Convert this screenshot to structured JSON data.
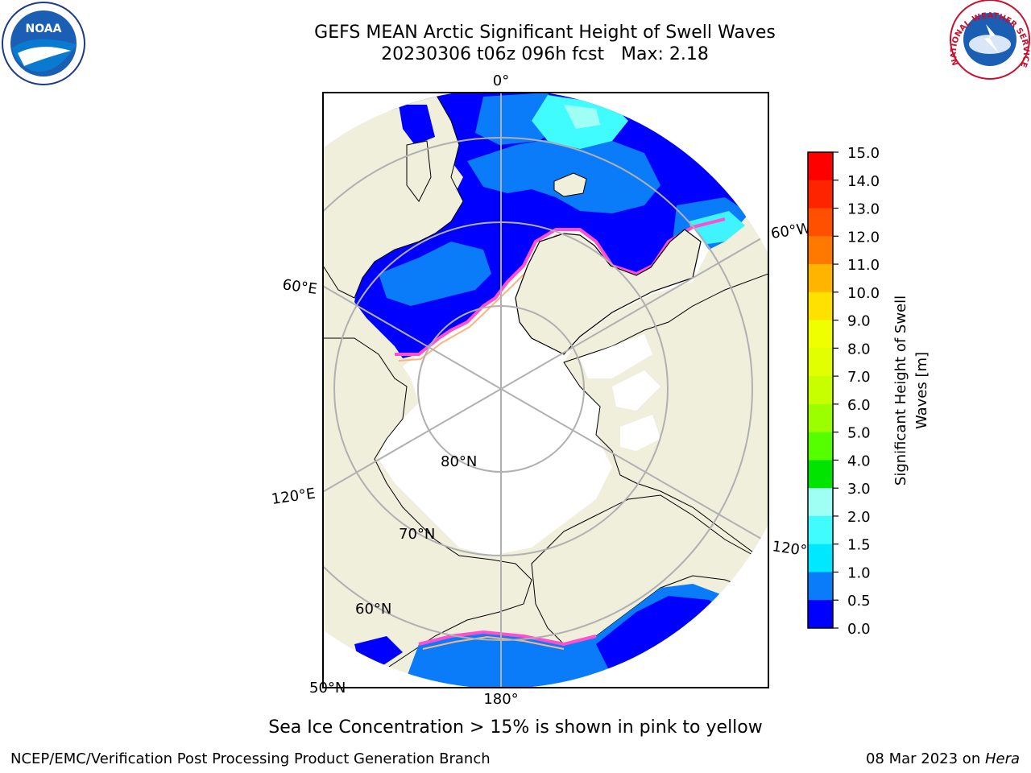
{
  "title": {
    "line1": "GEFS MEAN Arctic Significant Height of Swell Waves",
    "line2": "20230306 t06z 096h fcst   Max: 2.18"
  },
  "logos": {
    "left": "NOAA",
    "right": "NATIONAL WEATHER SERVICE"
  },
  "map": {
    "projection": "north-polar-stereographic",
    "longitude_labels": [
      "0°",
      "60°E",
      "60°W",
      "120°E",
      "120°W",
      "180°"
    ],
    "latitude_labels": [
      "80°N",
      "70°N",
      "60°N",
      "50°N"
    ],
    "colors": {
      "land": "#efefdc",
      "ocean_open": "#0000ff",
      "ocean_mid": "#0a7cfa",
      "ocean_high": "#3ff3ff",
      "ice": "#ffffff",
      "ice_edge": "#ff4fcf",
      "grid": "#b0b0b0"
    }
  },
  "colorbar": {
    "label": "Significant Height of Swell Waves [m]",
    "label_line1": "Significant Height of Swell",
    "label_line2": "Waves [m]",
    "ticks": [
      "15.0",
      "14.0",
      "13.0",
      "12.0",
      "11.0",
      "10.0",
      "9.0",
      "8.0",
      "7.0",
      "6.0",
      "5.0",
      "4.0",
      "3.0",
      "2.0",
      "1.5",
      "1.0",
      "0.5",
      "0.0"
    ],
    "colors_top_to_bottom": [
      "#ff0000",
      "#ff2400",
      "#ff5000",
      "#ff7800",
      "#ff9000",
      "#ffb400",
      "#ffe100",
      "#f0ff00",
      "#e1ff00",
      "#c8ff00",
      "#9bff00",
      "#55ff00",
      "#00e400",
      "#55f383",
      "#9ffff4",
      "#40fcff",
      "#00e8ff",
      "#0a7cfa",
      "#0000ff"
    ]
  },
  "caption": "Sea Ice Concentration > 15% is shown in pink to yellow",
  "footer": {
    "left": "NCEP/EMC/Verification Post Processing Product Generation Branch",
    "right_date": "08 Mar 2023 on ",
    "right_host": "Hera"
  }
}
